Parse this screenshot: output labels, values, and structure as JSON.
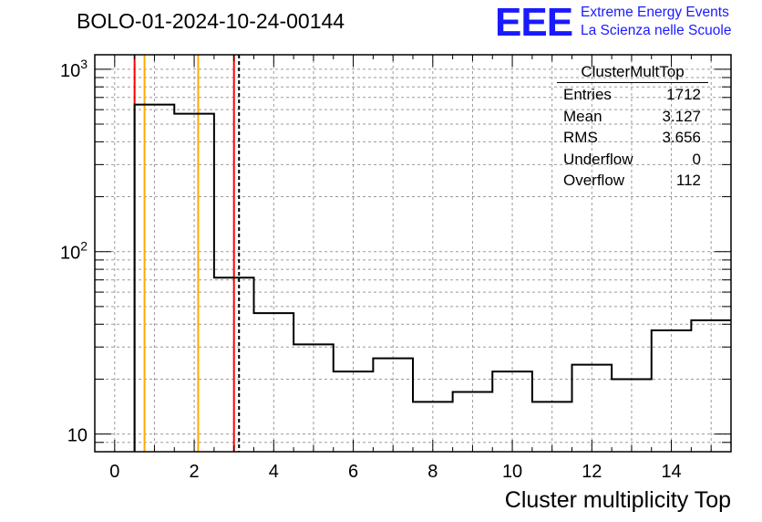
{
  "header": {
    "title": "BOLO-01-2024-10-24-00144",
    "logo_mark": "EEE",
    "logo_line1": "Extreme Energy Events",
    "logo_line2": "La Scienza nelle Scuole"
  },
  "stats": {
    "name": "ClusterMultTop",
    "rows": [
      {
        "label": "Entries",
        "value": "1712"
      },
      {
        "label": "Mean",
        "value": "3.127"
      },
      {
        "label": "RMS",
        "value": "3.656"
      },
      {
        "label": "Underflow",
        "value": "0"
      },
      {
        "label": "Overflow",
        "value": "112"
      }
    ]
  },
  "colors": {
    "red_line": "#ff0000",
    "orange_line": "#ffaa00",
    "logo_blue": "#1a1aff"
  },
  "chart_data": {
    "type": "bar",
    "style": "step-histogram",
    "xlabel": "Cluster multiplicity Top",
    "ylabel": "",
    "xlim": [
      -0.5,
      15.5
    ],
    "ylim": [
      8,
      1200
    ],
    "log_y": true,
    "grid": true,
    "bin_edges": [
      0.5,
      1.5,
      2.5,
      3.5,
      4.5,
      5.5,
      6.5,
      7.5,
      8.5,
      9.5,
      10.5,
      11.5,
      12.5,
      13.5,
      14.5,
      15.5
    ],
    "values": [
      640,
      570,
      72,
      46,
      31,
      22,
      26,
      15,
      17,
      22,
      15,
      24,
      20,
      37,
      42
    ],
    "x_ticks": [
      "0",
      "2",
      "4",
      "6",
      "8",
      "10",
      "12",
      "14"
    ],
    "y_ticks": [
      {
        "base": "10",
        "exp": ""
      },
      {
        "base": "10",
        "exp": "2"
      },
      {
        "base": "10",
        "exp": "3"
      }
    ],
    "markers": [
      {
        "x": 0.5,
        "color": "#ff0000",
        "style": "solid"
      },
      {
        "x": 0.75,
        "color": "#ffaa00",
        "style": "solid"
      },
      {
        "x": 2.1,
        "color": "#ffaa00",
        "style": "solid"
      },
      {
        "x": 3.0,
        "color": "#ff0000",
        "style": "solid"
      },
      {
        "x": 3.127,
        "color": "#000000",
        "style": "dashed"
      }
    ],
    "legend": "top-right"
  }
}
